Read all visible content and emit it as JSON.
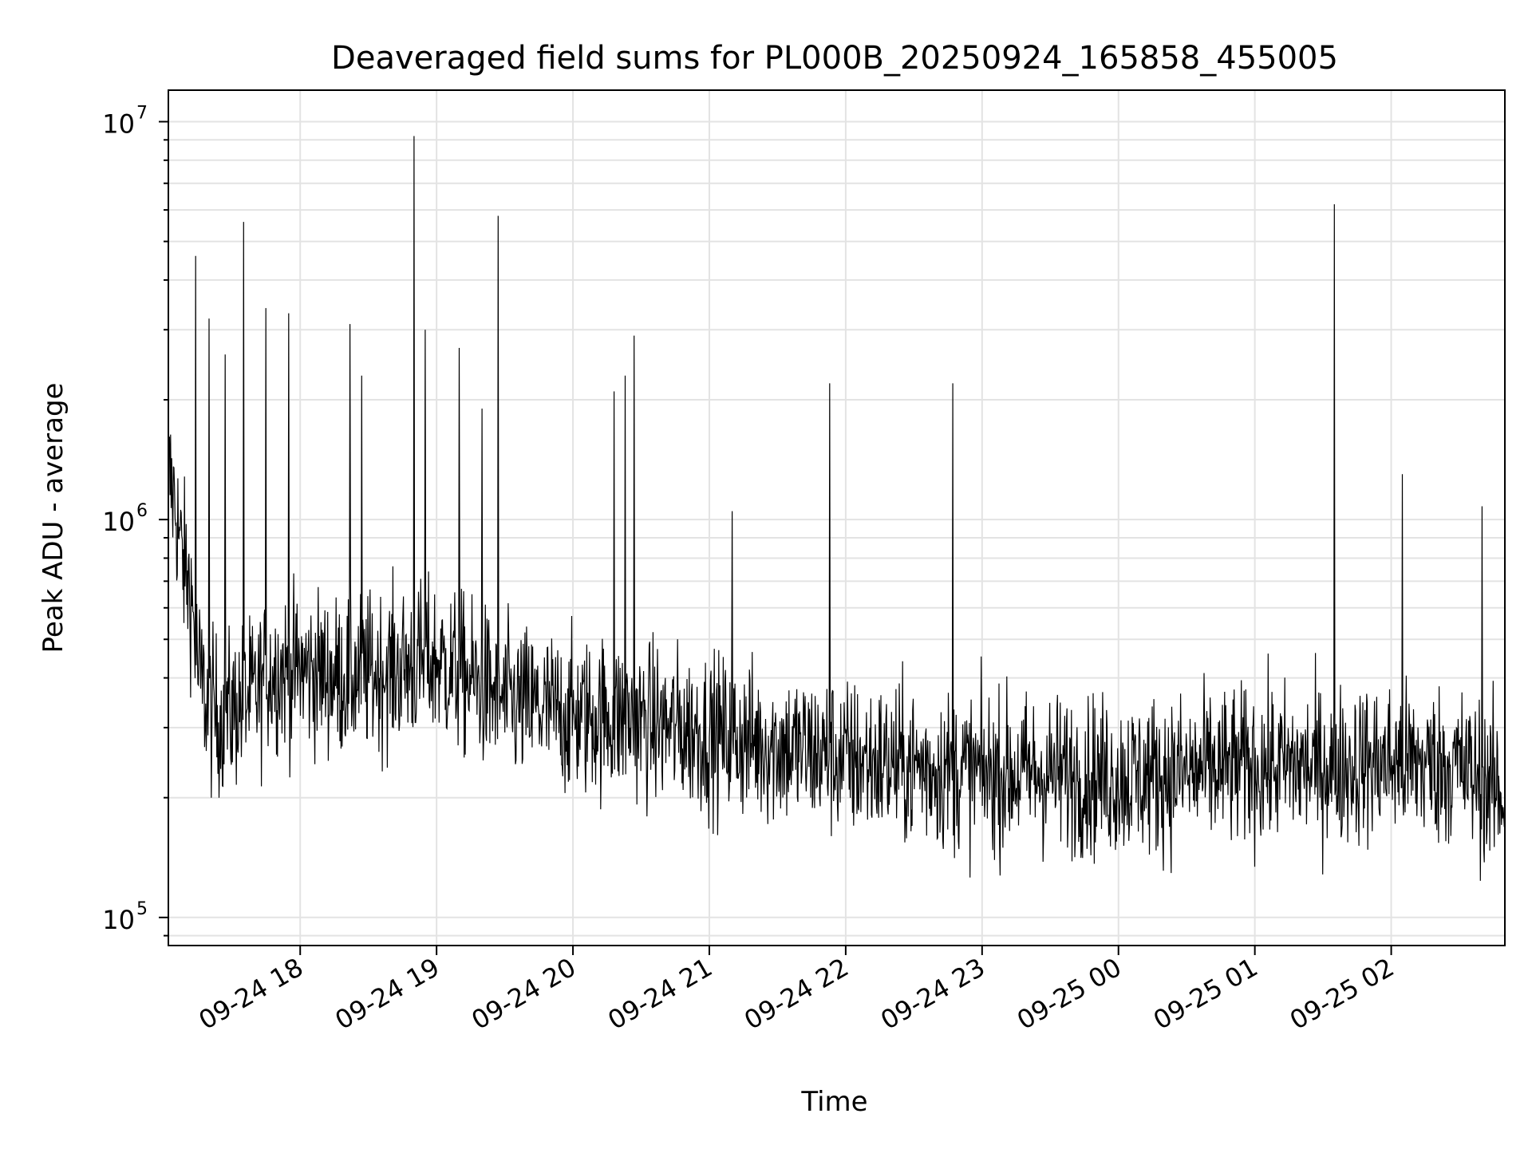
{
  "chart_data": {
    "type": "line",
    "title": "Deaveraged field sums for PL000B_20250924_165858_455005",
    "xlabel": "Time",
    "ylabel": "Peak ADU - average",
    "yscale": "log",
    "ylim": [
      85000,
      12000000
    ],
    "xlim": [
      "2025-09-24 17:02",
      "2025-09-25 02:50"
    ],
    "grid": true,
    "line_color": "#000000",
    "x_ticks": [
      {
        "time": "2025-09-24 18:00",
        "label": "09-24 18"
      },
      {
        "time": "2025-09-24 19:00",
        "label": "09-24 19"
      },
      {
        "time": "2025-09-24 20:00",
        "label": "09-24 20"
      },
      {
        "time": "2025-09-24 21:00",
        "label": "09-24 21"
      },
      {
        "time": "2025-09-24 22:00",
        "label": "09-24 22"
      },
      {
        "time": "2025-09-24 23:00",
        "label": "09-24 23"
      },
      {
        "time": "2025-09-25 00:00",
        "label": "09-25 00"
      },
      {
        "time": "2025-09-25 01:00",
        "label": "09-25 01"
      },
      {
        "time": "2025-09-25 02:00",
        "label": "09-25 02"
      }
    ],
    "y_ticks": [
      {
        "value": 100000,
        "base": "10",
        "exp": "5"
      },
      {
        "value": 1000000,
        "base": "10",
        "exp": "6"
      },
      {
        "value": 10000000,
        "base": "10",
        "exp": "7"
      }
    ],
    "series": [
      {
        "x": [
          "2025-09-24 17:02",
          "2025-09-24 17:05",
          "2025-09-24 17:08",
          "2025-09-24 17:12",
          "2025-09-24 17:15",
          "2025-09-24 17:20",
          "2025-09-24 17:25",
          "2025-09-24 17:30",
          "2025-09-24 17:35",
          "2025-09-24 17:40",
          "2025-09-24 17:45",
          "2025-09-24 17:50",
          "2025-09-24 17:55",
          "2025-09-24 18:00",
          "2025-09-24 18:10",
          "2025-09-24 18:20",
          "2025-09-24 18:30",
          "2025-09-24 18:40",
          "2025-09-24 18:50",
          "2025-09-24 19:00",
          "2025-09-24 19:10",
          "2025-09-24 19:20",
          "2025-09-24 19:30",
          "2025-09-24 19:40",
          "2025-09-24 19:50",
          "2025-09-24 20:00",
          "2025-09-24 20:15",
          "2025-09-24 20:30",
          "2025-09-24 20:45",
          "2025-09-24 21:00",
          "2025-09-24 21:30",
          "2025-09-24 22:00",
          "2025-09-24 22:30",
          "2025-09-24 23:00",
          "2025-09-24 23:30",
          "2025-09-25 00:00",
          "2025-09-25 00:30",
          "2025-09-25 01:00",
          "2025-09-25 01:30",
          "2025-09-25 02:00",
          "2025-09-25 02:30",
          "2025-09-25 02:50"
        ],
        "y": [
          1300000,
          1100000,
          800000,
          650000,
          420000,
          330000,
          320000,
          330000,
          350000,
          360000,
          400000,
          420000,
          410000,
          420000,
          410000,
          400000,
          410000,
          420000,
          430000,
          440000,
          410000,
          380000,
          350000,
          340000,
          330000,
          320000,
          320000,
          310000,
          300000,
          290000,
          270000,
          250000,
          240000,
          230000,
          230000,
          225000,
          230000,
          240000,
          240000,
          245000,
          240000,
          200000
        ],
        "spikes": [
          {
            "x": "2025-09-24 17:14",
            "y": 4600000
          },
          {
            "x": "2025-09-24 17:20",
            "y": 3200000
          },
          {
            "x": "2025-09-24 17:27",
            "y": 2600000
          },
          {
            "x": "2025-09-24 17:35",
            "y": 5600000
          },
          {
            "x": "2025-09-24 17:45",
            "y": 3400000
          },
          {
            "x": "2025-09-24 17:55",
            "y": 3300000
          },
          {
            "x": "2025-09-24 18:22",
            "y": 3100000
          },
          {
            "x": "2025-09-24 18:27",
            "y": 2300000
          },
          {
            "x": "2025-09-24 18:50",
            "y": 9200000
          },
          {
            "x": "2025-09-24 18:55",
            "y": 3000000
          },
          {
            "x": "2025-09-24 19:10",
            "y": 2700000
          },
          {
            "x": "2025-09-24 19:20",
            "y": 1900000
          },
          {
            "x": "2025-09-24 19:27",
            "y": 5800000
          },
          {
            "x": "2025-09-24 20:18",
            "y": 2100000
          },
          {
            "x": "2025-09-24 20:23",
            "y": 2300000
          },
          {
            "x": "2025-09-24 20:27",
            "y": 2900000
          },
          {
            "x": "2025-09-24 21:10",
            "y": 1050000
          },
          {
            "x": "2025-09-24 21:53",
            "y": 2200000
          },
          {
            "x": "2025-09-24 22:47",
            "y": 2200000
          },
          {
            "x": "2025-09-25 01:35",
            "y": 6200000
          },
          {
            "x": "2025-09-25 02:05",
            "y": 1300000
          },
          {
            "x": "2025-09-25 02:40",
            "y": 1080000
          }
        ]
      }
    ]
  }
}
